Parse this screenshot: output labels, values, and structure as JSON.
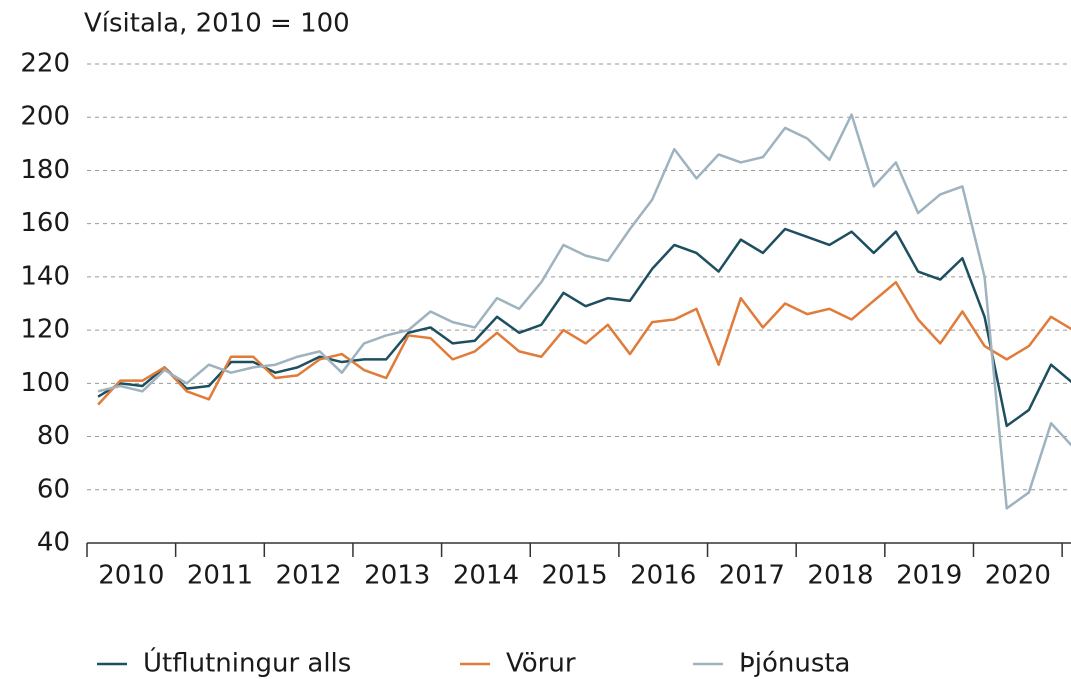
{
  "chart_data": {
    "type": "line",
    "title": "Vísitala, 2010 = 100",
    "x": [
      2010.125,
      2010.375,
      2010.625,
      2010.875,
      2011.125,
      2011.375,
      2011.625,
      2011.875,
      2012.125,
      2012.375,
      2012.625,
      2012.875,
      2013.125,
      2013.375,
      2013.625,
      2013.875,
      2014.125,
      2014.375,
      2014.625,
      2014.875,
      2015.125,
      2015.375,
      2015.625,
      2015.875,
      2016.125,
      2016.375,
      2016.625,
      2016.875,
      2017.125,
      2017.375,
      2017.625,
      2017.875,
      2018.125,
      2018.375,
      2018.625,
      2018.875,
      2019.125,
      2019.375,
      2019.625,
      2019.875,
      2020.125,
      2020.375,
      2020.625,
      2020.875,
      2021.125
    ],
    "series": [
      {
        "name": "Útflutningur alls",
        "color": "#1d4f5f",
        "values": [
          95,
          100,
          99,
          106,
          98,
          99,
          108,
          108,
          104,
          106,
          110,
          108,
          109,
          109,
          119,
          121,
          115,
          116,
          125,
          119,
          122,
          134,
          129,
          132,
          131,
          143,
          152,
          149,
          142,
          154,
          149,
          158,
          155,
          152,
          157,
          149,
          157,
          142,
          139,
          147,
          125,
          84,
          90,
          107,
          100
        ]
      },
      {
        "name": "Vörur",
        "color": "#e07b39",
        "values": [
          92,
          101,
          101,
          106,
          97,
          94,
          110,
          110,
          102,
          103,
          109,
          111,
          105,
          102,
          118,
          117,
          109,
          112,
          119,
          112,
          110,
          120,
          115,
          122,
          111,
          123,
          124,
          128,
          107,
          132,
          121,
          130,
          126,
          128,
          124,
          131,
          138,
          124,
          115,
          127,
          114,
          109,
          114,
          125,
          120
        ]
      },
      {
        "name": "Þjónusta",
        "color": "#9fb3bf",
        "values": [
          97,
          99,
          97,
          105,
          100,
          107,
          104,
          106,
          107,
          110,
          112,
          104,
          115,
          118,
          120,
          127,
          123,
          121,
          132,
          128,
          138,
          152,
          148,
          146,
          158,
          169,
          188,
          177,
          186,
          183,
          185,
          196,
          192,
          184,
          201,
          174,
          183,
          164,
          171,
          174,
          140,
          53,
          59,
          85,
          76
        ]
      }
    ],
    "xlim": [
      2010,
      2021.1
    ],
    "xticks": [
      2010,
      2011,
      2012,
      2013,
      2014,
      2015,
      2016,
      2017,
      2018,
      2019,
      2020,
      2021
    ],
    "x_labels": [
      "2010",
      "2011",
      "2012",
      "2013",
      "2014",
      "2015",
      "2016",
      "2017",
      "2018",
      "2019",
      "2020"
    ],
    "ylim": [
      40,
      220
    ],
    "yticks": [
      40,
      60,
      80,
      100,
      120,
      140,
      160,
      180,
      200,
      220
    ],
    "grid": true
  }
}
